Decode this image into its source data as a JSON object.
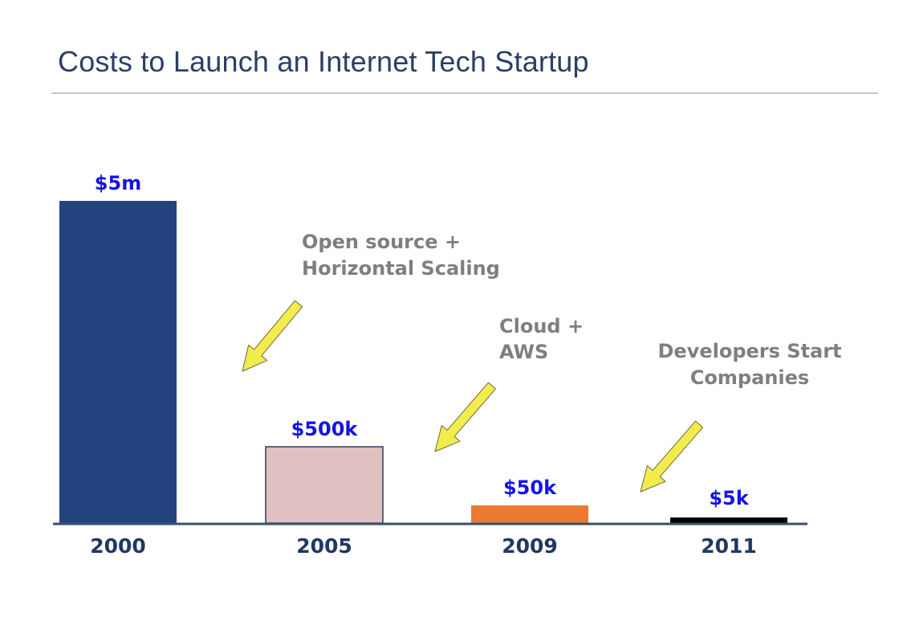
{
  "slide": {
    "title": "Costs to Launch an Internet Tech Startup"
  },
  "chart_data": {
    "type": "bar",
    "title": "Costs to Launch an Internet Tech Startup",
    "categories": [
      "2000",
      "2005",
      "2009",
      "2011"
    ],
    "values": [
      5000000,
      500000,
      50000,
      5000
    ],
    "value_labels": [
      "$5m",
      "$500k",
      "$50k",
      "$5k"
    ],
    "bar_colors": [
      "#23437f",
      "#e0c0c0",
      "#ea7a31",
      "#000000"
    ],
    "axis_color": "#3a4f6e",
    "grid": false,
    "legend": "none",
    "scale_note": "bar heights not to linear scale",
    "annotations": [
      {
        "lines": [
          "Open source +",
          "Horizontal Scaling"
        ]
      },
      {
        "lines": [
          "Cloud +",
          "AWS"
        ]
      },
      {
        "lines": [
          "Developers Start",
          "Companies"
        ]
      }
    ],
    "arrow_color": "#f2ec4d"
  }
}
